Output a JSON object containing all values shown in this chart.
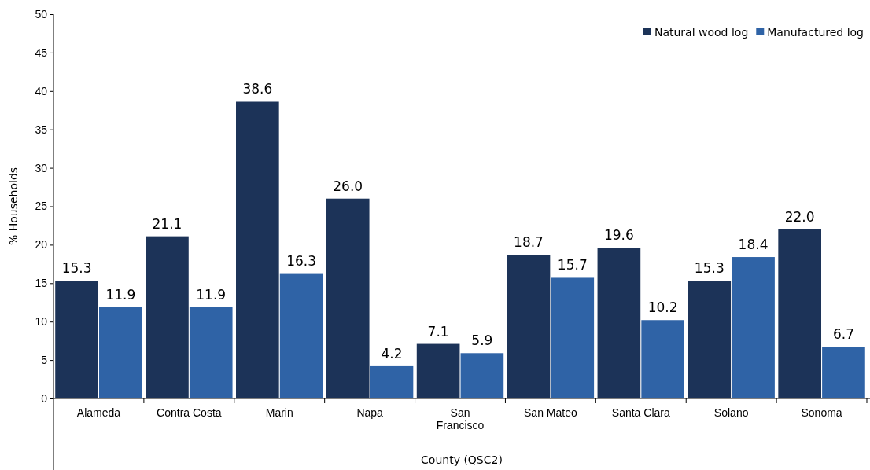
{
  "chart_data": {
    "type": "bar",
    "xlabel": "County (QSC2)",
    "ylabel": "% Households",
    "categories": [
      "Alameda",
      "Contra Costa",
      "Marin",
      "Napa",
      "San Francisco",
      "San Mateo",
      "Santa Clara",
      "Solano",
      "Sonoma"
    ],
    "series": [
      {
        "name": "Natural wood log",
        "color": "#1c3358",
        "values": [
          15.3,
          21.1,
          38.6,
          26.0,
          7.1,
          18.7,
          19.6,
          15.3,
          22.0
        ]
      },
      {
        "name": "Manufactured log",
        "color": "#2f63a6",
        "values": [
          11.9,
          11.9,
          16.3,
          4.2,
          5.9,
          15.7,
          10.2,
          18.4,
          6.7
        ]
      }
    ],
    "ylim": [
      0,
      50
    ],
    "yticks": [
      0,
      5,
      10,
      15,
      20,
      25,
      30,
      35,
      40,
      45,
      50
    ],
    "value_labels": [
      [
        "15.3",
        "21.1",
        "38.6",
        "26.0",
        "7.1",
        "18.7",
        "19.6",
        "15.3",
        "22.0"
      ],
      [
        "11.9",
        "11.9",
        "16.3",
        "4.2",
        "5.9",
        "15.7",
        "10.2",
        "18.4",
        "6.7"
      ]
    ],
    "legend": "top right",
    "grid": false
  }
}
